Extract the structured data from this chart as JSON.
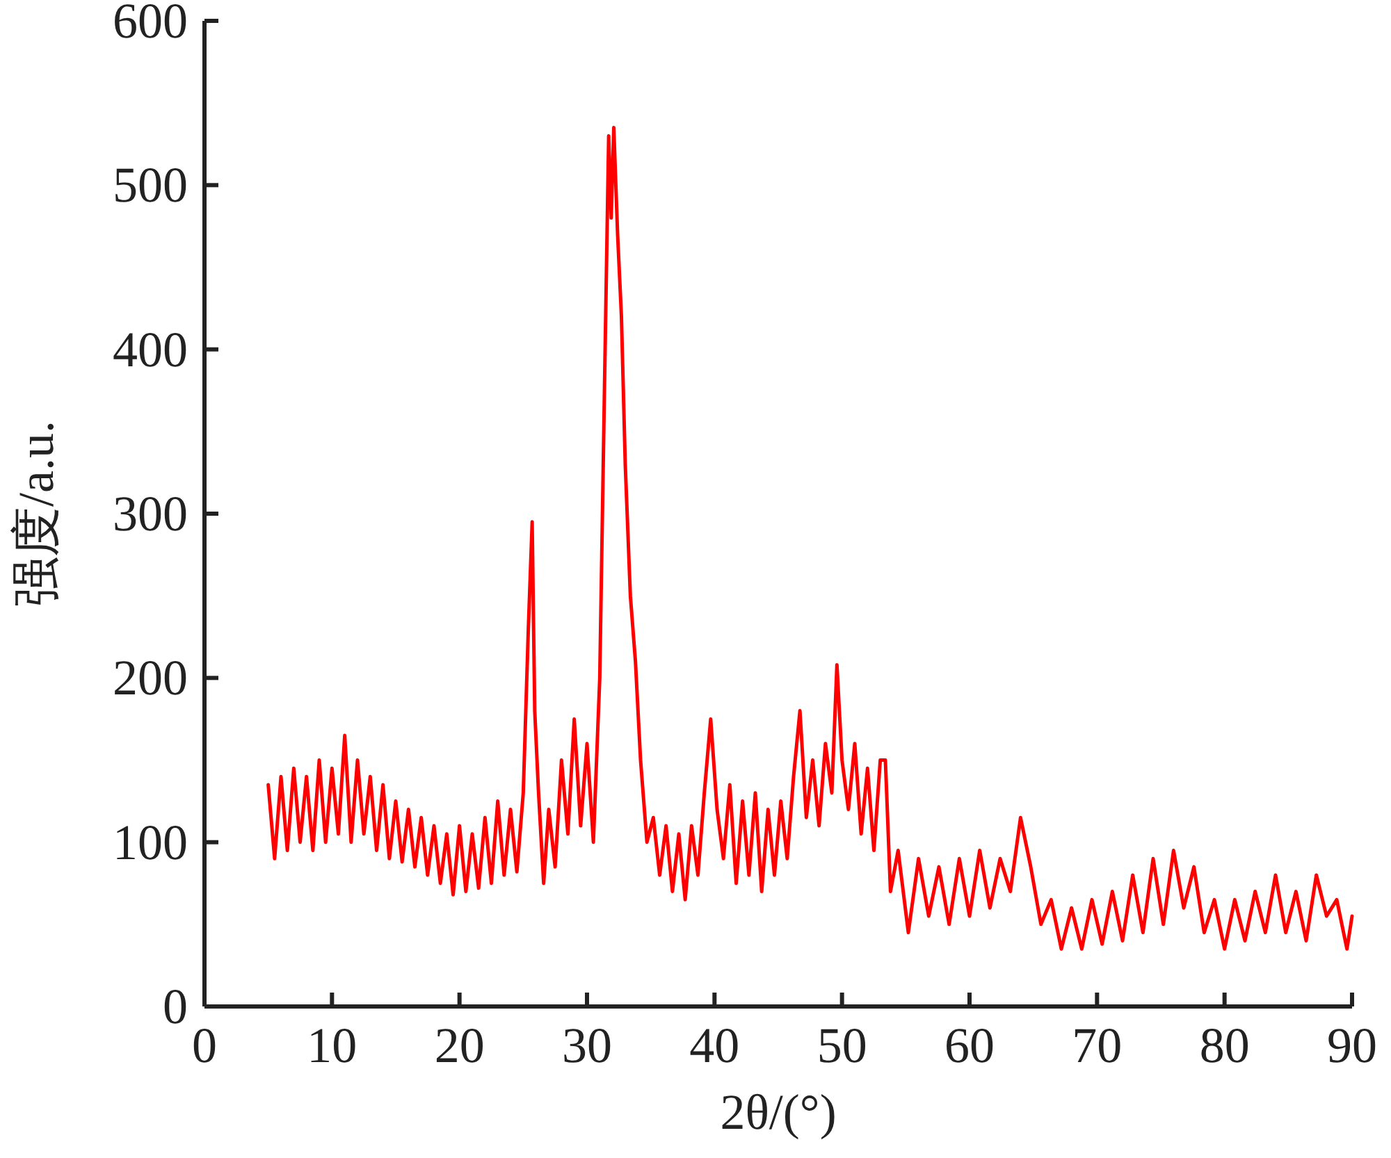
{
  "chart_data": {
    "type": "line",
    "xlabel": "2θ/(°)",
    "ylabel": "强度/a.u.",
    "xlim": [
      0,
      90
    ],
    "ylim": [
      0,
      600
    ],
    "xticks": [
      0,
      10,
      20,
      30,
      40,
      50,
      60,
      70,
      80,
      90
    ],
    "yticks": [
      0,
      100,
      200,
      300,
      400,
      500,
      600
    ],
    "series": [
      {
        "color": "#ff0000",
        "x": [
          5,
          5.5,
          6,
          6.5,
          7,
          7.5,
          8,
          8.5,
          9,
          9.5,
          10,
          10.5,
          11,
          11.5,
          12,
          12.5,
          13,
          13.5,
          14,
          14.5,
          15,
          15.5,
          16,
          16.5,
          17,
          17.5,
          18,
          18.5,
          19,
          19.5,
          20,
          20.5,
          21,
          21.5,
          22,
          22.5,
          23,
          23.5,
          24,
          24.5,
          25,
          25.4,
          25.7,
          25.9,
          26.2,
          26.6,
          27,
          27.5,
          28,
          28.5,
          29,
          29.5,
          30,
          30.5,
          31,
          31.4,
          31.7,
          31.9,
          32.1,
          32.4,
          32.7,
          33,
          33.4,
          33.8,
          34.2,
          34.7,
          35.2,
          35.7,
          36.2,
          36.7,
          37.2,
          37.7,
          38.2,
          38.7,
          39.2,
          39.7,
          40.2,
          40.7,
          41.2,
          41.7,
          42.2,
          42.7,
          43.2,
          43.7,
          44.2,
          44.7,
          45.2,
          45.7,
          46.2,
          46.7,
          47.2,
          47.7,
          48.2,
          48.7,
          49.2,
          49.6,
          50,
          50.5,
          51,
          51.5,
          52,
          52.5,
          53,
          53.4,
          53.8,
          54.4,
          55.2,
          56,
          56.8,
          57.6,
          58.4,
          59.2,
          60,
          60.8,
          61.6,
          62.4,
          63.2,
          64,
          64.8,
          65.6,
          66.4,
          67.2,
          68,
          68.8,
          69.6,
          70.4,
          71.2,
          72,
          72.8,
          73.6,
          74.4,
          75.2,
          76,
          76.8,
          77.6,
          78.4,
          79.2,
          80,
          80.8,
          81.6,
          82.4,
          83.2,
          84,
          84.8,
          85.6,
          86.4,
          87.2,
          88,
          88.8,
          89.6,
          90
        ],
        "values": [
          135,
          90,
          140,
          95,
          145,
          100,
          140,
          95,
          150,
          100,
          145,
          105,
          165,
          100,
          150,
          105,
          140,
          95,
          135,
          90,
          125,
          88,
          120,
          85,
          115,
          80,
          110,
          75,
          105,
          68,
          110,
          70,
          105,
          72,
          115,
          75,
          125,
          80,
          120,
          82,
          130,
          230,
          295,
          180,
          130,
          75,
          120,
          85,
          150,
          105,
          175,
          110,
          160,
          100,
          200,
          390,
          530,
          480,
          535,
          470,
          420,
          330,
          250,
          210,
          150,
          100,
          115,
          80,
          110,
          70,
          105,
          65,
          110,
          80,
          130,
          175,
          120,
          90,
          135,
          75,
          125,
          80,
          130,
          70,
          120,
          80,
          125,
          90,
          140,
          180,
          115,
          150,
          110,
          160,
          130,
          208,
          150,
          120,
          160,
          105,
          145,
          95,
          150,
          150,
          70,
          95,
          45,
          90,
          55,
          85,
          50,
          90,
          55,
          95,
          60,
          90,
          70,
          115,
          85,
          50,
          65,
          35,
          60,
          35,
          65,
          38,
          70,
          40,
          80,
          45,
          90,
          50,
          95,
          60,
          85,
          45,
          65,
          35,
          65,
          40,
          70,
          45,
          80,
          45,
          70,
          40,
          80,
          55,
          65,
          35,
          55
        ]
      }
    ]
  }
}
